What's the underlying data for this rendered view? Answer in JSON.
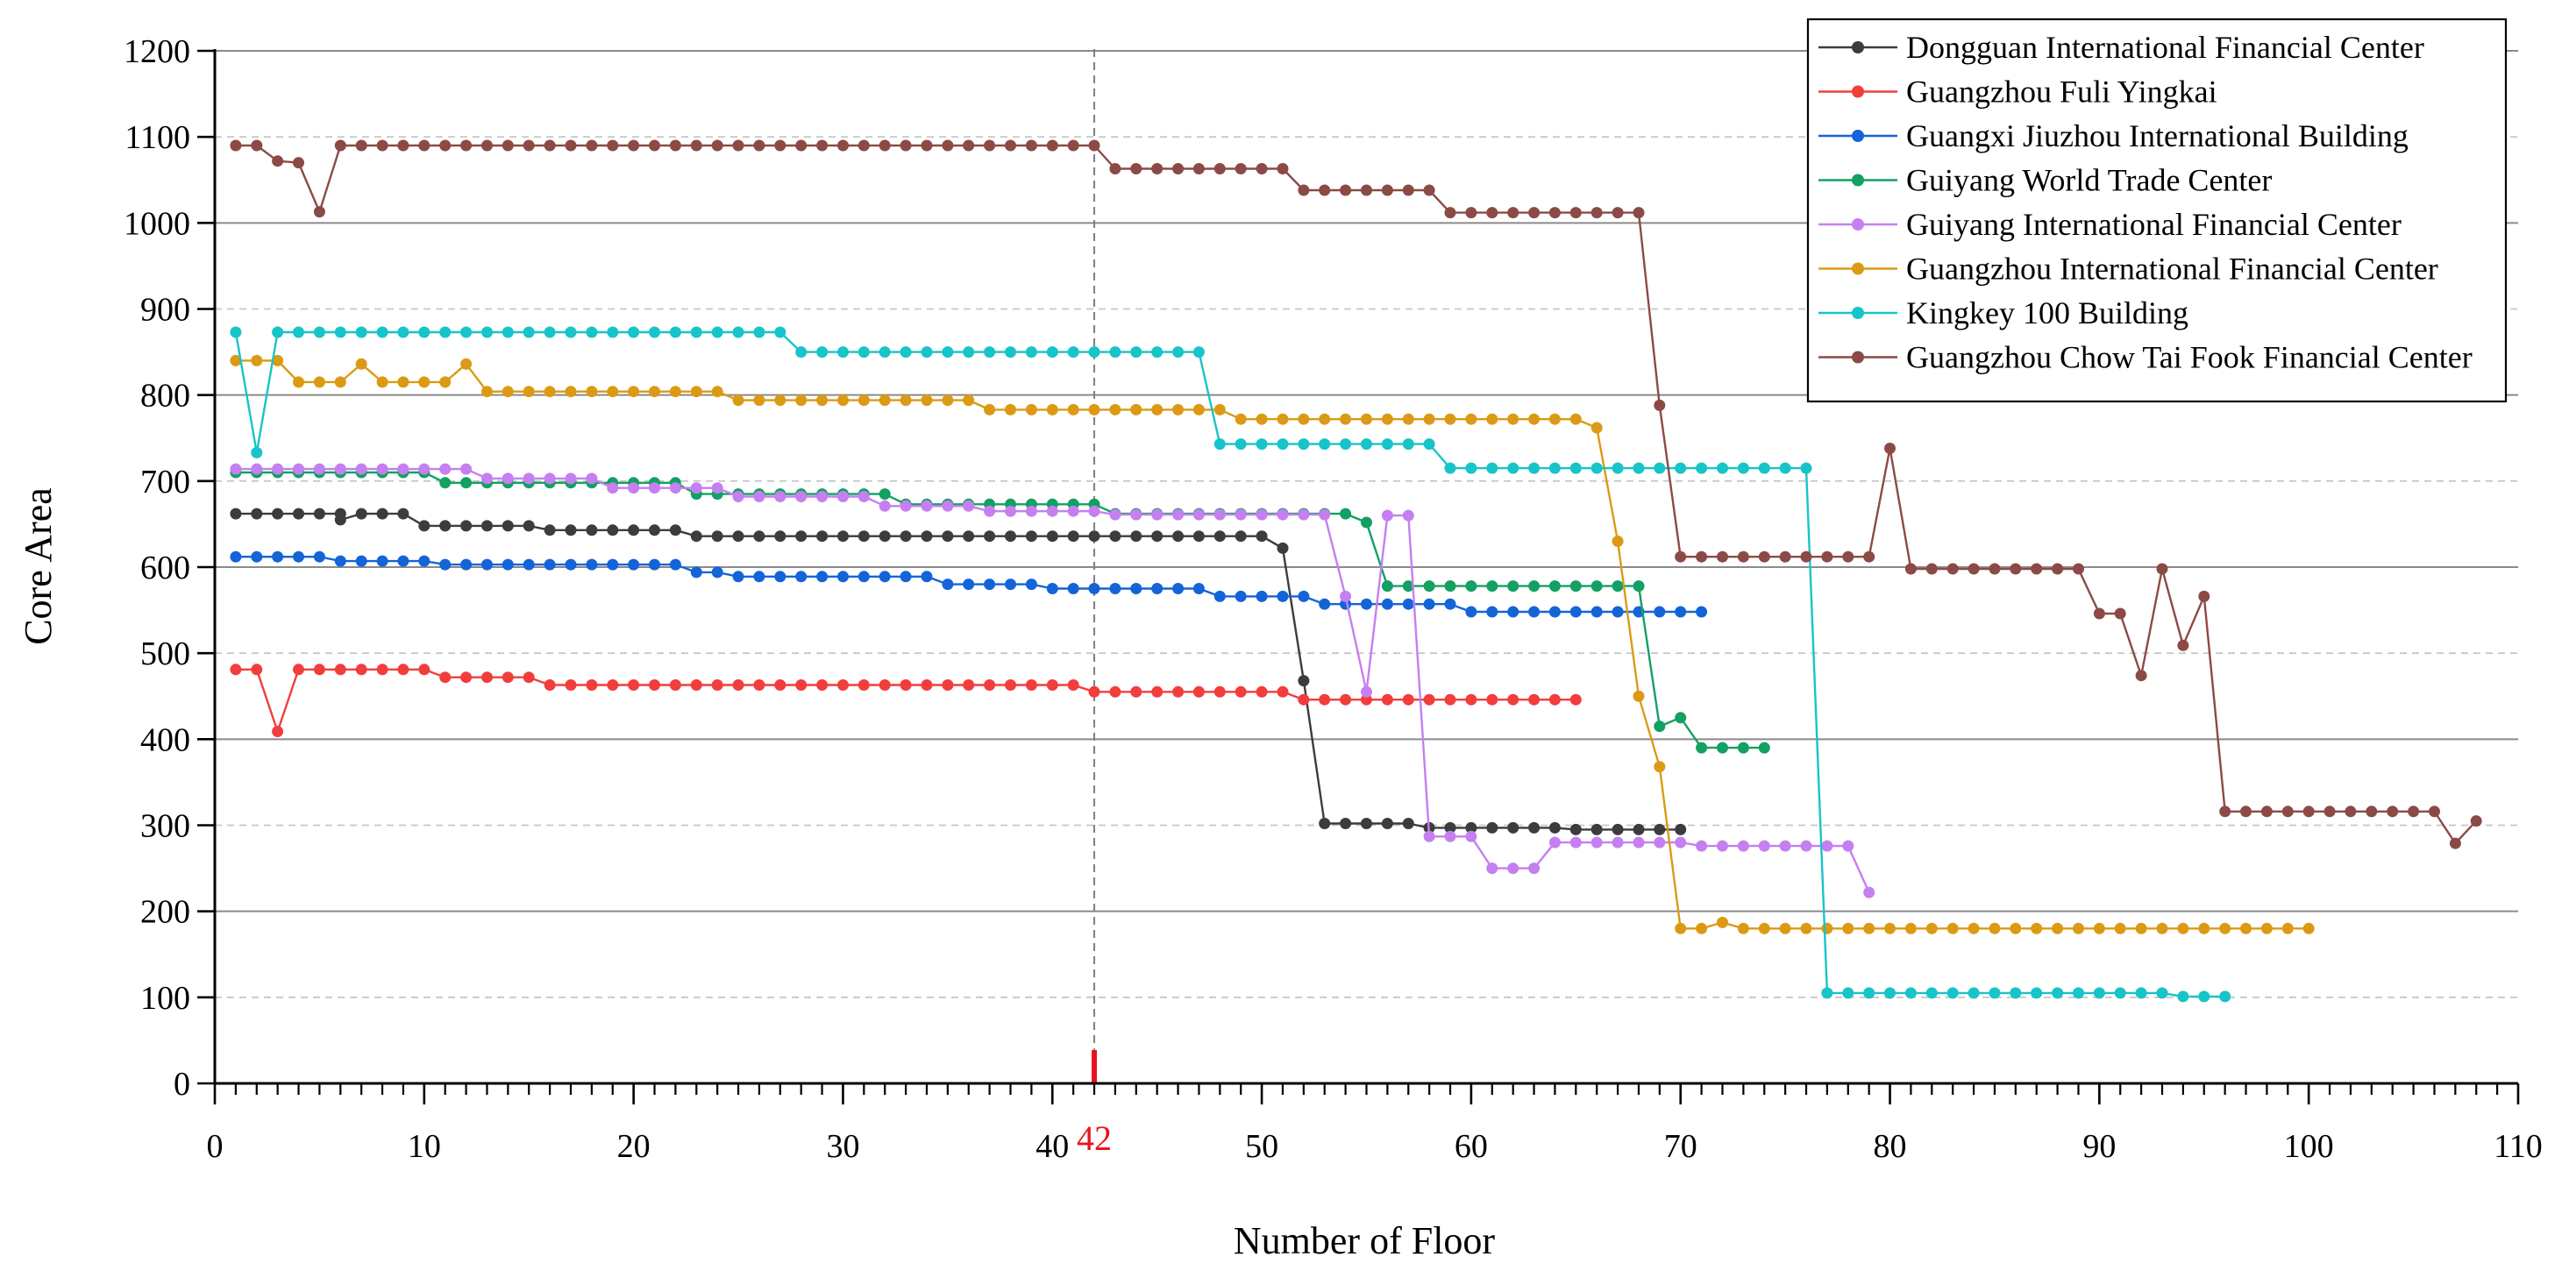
{
  "chart_data": {
    "type": "line",
    "title": "",
    "xlabel": "Number of Floor",
    "ylabel": "Core Area",
    "xlim": [
      0,
      110
    ],
    "ylim": [
      0,
      1200
    ],
    "x_ticks": [
      "0",
      "10",
      "20",
      "30",
      "40",
      "50",
      "60",
      "70",
      "80",
      "90",
      "100",
      "110"
    ],
    "y_ticks": [
      "0",
      "100",
      "200",
      "300",
      "400",
      "500",
      "600",
      "700",
      "800",
      "900",
      "1000",
      "1100",
      "1200"
    ],
    "grid": "horizontal, solid at 200/400/600/800/1000, dashed at 100/300/500/700/900/1100",
    "legend_position": "top-right",
    "annotation": {
      "label": "42",
      "x": 42,
      "color": "#e8141c"
    },
    "series": [
      {
        "name": "Dongguan International Financial Center",
        "color": "#3c3c3c",
        "runs": [
          [
            1,
            9,
            662
          ],
          [
            10,
            15,
            648
          ],
          [
            16,
            22,
            643
          ],
          [
            23,
            50,
            636
          ]
        ],
        "points": [
          [
            6,
            655
          ],
          [
            51,
            622
          ],
          [
            52,
            468
          ],
          [
            53,
            302
          ],
          [
            54,
            302
          ],
          [
            55,
            302
          ],
          [
            56,
            302
          ],
          [
            57,
            302
          ],
          [
            58,
            297
          ],
          [
            59,
            297
          ],
          [
            60,
            297
          ],
          [
            61,
            297
          ],
          [
            62,
            297
          ],
          [
            63,
            297
          ],
          [
            64,
            297
          ],
          [
            65,
            295
          ],
          [
            66,
            295
          ],
          [
            67,
            295
          ],
          [
            68,
            295
          ],
          [
            69,
            295
          ],
          [
            70,
            295
          ]
        ]
      },
      {
        "name": "Guangzhou Fuli Yingkai",
        "color": "#f23d3d",
        "runs": [
          [
            1,
            2,
            481
          ],
          [
            4,
            10,
            481
          ],
          [
            11,
            15,
            472
          ],
          [
            16,
            41,
            463
          ],
          [
            42,
            51,
            455
          ],
          [
            52,
            65,
            446
          ]
        ],
        "points": [
          [
            3,
            409
          ]
        ]
      },
      {
        "name": "Guangxi Jiuzhou International Building",
        "color": "#1464d8",
        "runs": [
          [
            1,
            5,
            612
          ],
          [
            6,
            10,
            607
          ],
          [
            11,
            22,
            603
          ],
          [
            23,
            24,
            594
          ],
          [
            25,
            34,
            589
          ],
          [
            35,
            39,
            580
          ],
          [
            40,
            47,
            575
          ],
          [
            48,
            52,
            566
          ],
          [
            53,
            59,
            557
          ],
          [
            60,
            71,
            548
          ]
        ],
        "points": []
      },
      {
        "name": "Guiyang World Trade Center",
        "color": "#13a063",
        "runs": [
          [
            1,
            10,
            710
          ],
          [
            11,
            22,
            698
          ],
          [
            23,
            32,
            685
          ],
          [
            33,
            42,
            673
          ],
          [
            43,
            54,
            662
          ],
          [
            56,
            68,
            578
          ]
        ],
        "points": [
          [
            55,
            652
          ],
          [
            69,
            415
          ],
          [
            70,
            425
          ],
          [
            71,
            390
          ],
          [
            72,
            390
          ],
          [
            73,
            390
          ],
          [
            74,
            390
          ]
        ]
      },
      {
        "name": "Guiyang International Financial Center",
        "color": "#c57ff0",
        "runs": [
          [
            1,
            12,
            714
          ],
          [
            13,
            18,
            703
          ],
          [
            19,
            24,
            692
          ],
          [
            25,
            31,
            682
          ],
          [
            32,
            36,
            671
          ],
          [
            37,
            42,
            665
          ],
          [
            43,
            53,
            661
          ],
          [
            58,
            60,
            287
          ],
          [
            64,
            70,
            280
          ],
          [
            71,
            78,
            276
          ]
        ],
        "points": [
          [
            54,
            566
          ],
          [
            55,
            455
          ],
          [
            56,
            660
          ],
          [
            57,
            660
          ],
          [
            61,
            250
          ],
          [
            62,
            250
          ],
          [
            63,
            250
          ],
          [
            79,
            222
          ]
        ]
      },
      {
        "name": "Guangzhou International Financial Center",
        "color": "#dc9a14",
        "runs": [
          [
            1,
            3,
            840
          ],
          [
            4,
            6,
            815
          ],
          [
            8,
            11,
            815
          ],
          [
            13,
            24,
            804
          ],
          [
            25,
            36,
            794
          ],
          [
            37,
            47,
            783
          ],
          [
            49,
            65,
            772
          ],
          [
            73,
            100,
            180
          ]
        ],
        "points": [
          [
            7,
            836
          ],
          [
            12,
            836
          ],
          [
            48,
            783
          ],
          [
            66,
            762
          ],
          [
            67,
            630
          ],
          [
            68,
            450
          ],
          [
            69,
            368
          ],
          [
            70,
            180
          ],
          [
            71,
            180
          ],
          [
            72,
            187
          ]
        ]
      },
      {
        "name": "Kingkey 100 Building",
        "color": "#17c4c8",
        "runs": [
          [
            3,
            27,
            873
          ],
          [
            28,
            47,
            850
          ],
          [
            48,
            58,
            743
          ],
          [
            59,
            76,
            715
          ],
          [
            77,
            93,
            105
          ],
          [
            94,
            96,
            101
          ]
        ],
        "points": [
          [
            1,
            873
          ],
          [
            2,
            733
          ]
        ]
      },
      {
        "name": "Guangzhou Chow Tai Fook Financial Center",
        "color": "#8c4a46",
        "runs": [
          [
            6,
            42,
            1090
          ],
          [
            43,
            51,
            1063
          ],
          [
            52,
            58,
            1038
          ],
          [
            59,
            68,
            1012
          ],
          [
            70,
            79,
            612
          ],
          [
            81,
            89,
            598
          ],
          [
            96,
            106,
            316
          ]
        ],
        "points": [
          [
            1,
            1090
          ],
          [
            2,
            1090
          ],
          [
            3,
            1072
          ],
          [
            4,
            1070
          ],
          [
            5,
            1013
          ],
          [
            69,
            788
          ],
          [
            80,
            738
          ],
          [
            90,
            546
          ],
          [
            91,
            546
          ],
          [
            92,
            474
          ],
          [
            93,
            598
          ],
          [
            94,
            509
          ],
          [
            95,
            566
          ],
          [
            107,
            279
          ],
          [
            108,
            305
          ]
        ]
      }
    ]
  }
}
